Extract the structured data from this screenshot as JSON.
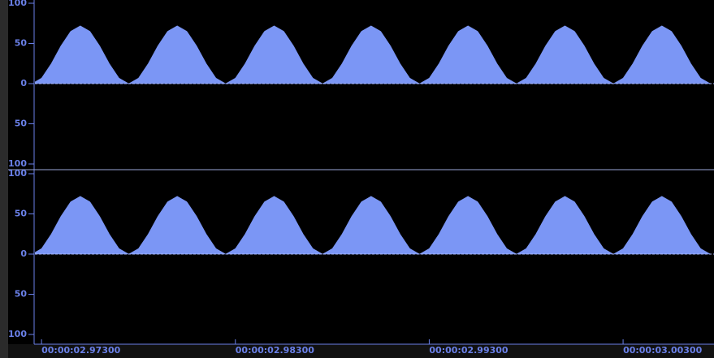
{
  "chart_data": [
    {
      "type": "area",
      "color": "#7b96f5",
      "x": [
        2.9725,
        2.973,
        2.9735,
        2.974,
        2.9745,
        2.975,
        2.9755,
        2.976,
        2.9765,
        2.977,
        2.9775,
        2.978,
        2.9785,
        2.979,
        2.9795,
        2.98,
        2.9805,
        2.981,
        2.9815,
        2.982,
        2.9825,
        2.983,
        2.9835,
        2.984,
        2.9845,
        2.985,
        2.9855,
        2.986,
        2.9865,
        2.987,
        2.9875,
        2.988,
        2.9885,
        2.989,
        2.9895,
        2.99,
        2.9905,
        2.991,
        2.9915,
        2.992,
        2.9925,
        2.993,
        2.9935,
        2.994,
        2.9945,
        2.995,
        2.9955,
        2.996,
        2.9965,
        2.997,
        2.9975,
        2.998,
        2.9985,
        2.999,
        2.9995,
        3.0,
        3.0005,
        3.001,
        3.0015,
        3.002,
        3.0025,
        3.003,
        3.0035,
        3.004,
        3.0045,
        3.005,
        3.0055,
        3.006,
        3.0065,
        3.007,
        3.0075
      ],
      "values": [
        0,
        6.9,
        24.9,
        47.1,
        65.1,
        72,
        65.1,
        47.1,
        24.9,
        6.9,
        0,
        6.9,
        24.9,
        47.1,
        65.1,
        72,
        65.1,
        47.1,
        24.9,
        6.9,
        0,
        6.9,
        24.9,
        47.1,
        65.1,
        72,
        65.1,
        47.1,
        24.9,
        6.9,
        0,
        6.9,
        24.9,
        47.1,
        65.1,
        72,
        65.1,
        47.1,
        24.9,
        6.9,
        0,
        6.9,
        24.9,
        47.1,
        65.1,
        72,
        65.1,
        47.1,
        24.9,
        6.9,
        0,
        6.9,
        24.9,
        47.1,
        65.1,
        72,
        65.1,
        47.1,
        24.9,
        6.9,
        0,
        6.9,
        24.9,
        47.1,
        65.1,
        72,
        65.1,
        47.1,
        24.9,
        6.9,
        0
      ],
      "xlim": [
        2.97266,
        3.00769
      ],
      "ylim": [
        -100,
        100
      ],
      "yticks": [
        100,
        50,
        0,
        {
          "value": -50,
          "label": "50"
        },
        {
          "value": -100,
          "label": "100"
        }
      ]
    },
    {
      "type": "area",
      "color": "#7b96f5",
      "x": [
        2.9725,
        2.973,
        2.9735,
        2.974,
        2.9745,
        2.975,
        2.9755,
        2.976,
        2.9765,
        2.977,
        2.9775,
        2.978,
        2.9785,
        2.979,
        2.9795,
        2.98,
        2.9805,
        2.981,
        2.9815,
        2.982,
        2.9825,
        2.983,
        2.9835,
        2.984,
        2.9845,
        2.985,
        2.9855,
        2.986,
        2.9865,
        2.987,
        2.9875,
        2.988,
        2.9885,
        2.989,
        2.9895,
        2.99,
        2.9905,
        2.991,
        2.9915,
        2.992,
        2.9925,
        2.993,
        2.9935,
        2.994,
        2.9945,
        2.995,
        2.9955,
        2.996,
        2.9965,
        2.997,
        2.9975,
        2.998,
        2.9985,
        2.999,
        2.9995,
        3.0,
        3.0005,
        3.001,
        3.0015,
        3.002,
        3.0025,
        3.003,
        3.0035,
        3.004,
        3.0045,
        3.005,
        3.0055,
        3.006,
        3.0065,
        3.007,
        3.0075
      ],
      "values": [
        0,
        6.9,
        24.9,
        47.1,
        65.1,
        72,
        65.1,
        47.1,
        24.9,
        6.9,
        0,
        6.9,
        24.9,
        47.1,
        65.1,
        72,
        65.1,
        47.1,
        24.9,
        6.9,
        0,
        6.9,
        24.9,
        47.1,
        65.1,
        72,
        65.1,
        47.1,
        24.9,
        6.9,
        0,
        6.9,
        24.9,
        47.1,
        65.1,
        72,
        65.1,
        47.1,
        24.9,
        6.9,
        0,
        6.9,
        24.9,
        47.1,
        65.1,
        72,
        65.1,
        47.1,
        24.9,
        6.9,
        0,
        6.9,
        24.9,
        47.1,
        65.1,
        72,
        65.1,
        47.1,
        24.9,
        6.9,
        0,
        6.9,
        24.9,
        47.1,
        65.1,
        72,
        65.1,
        47.1,
        24.9,
        6.9,
        0
      ],
      "xlim": [
        2.97266,
        3.00769
      ],
      "ylim": [
        -100,
        100
      ],
      "yticks": [
        100,
        50,
        0,
        {
          "value": -50,
          "label": "50"
        },
        {
          "value": -100,
          "label": "100"
        }
      ],
      "xticks": [
        {
          "value": 2.973,
          "label": "00:00:02.97300"
        },
        {
          "value": 2.983,
          "label": "00:00:02.98300"
        },
        {
          "value": 2.993,
          "label": "00:00:02.99300"
        },
        {
          "value": 3.003,
          "label": "00:00:03.00300"
        }
      ]
    }
  ]
}
